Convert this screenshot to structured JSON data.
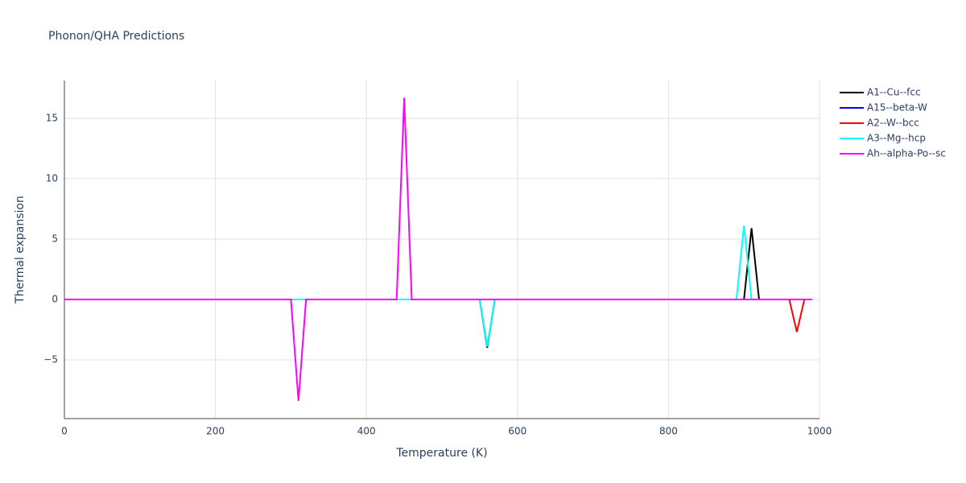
{
  "chart_data": {
    "type": "line",
    "title": "Phonon/QHA Predictions",
    "xlabel": "Temperature (K)",
    "ylabel": "Thermal expansion",
    "xlim": [
      0,
      1000
    ],
    "xticks": [
      0,
      200,
      400,
      600,
      800,
      1000
    ],
    "ylim": [
      -9.87,
      18.13
    ],
    "yticks": [
      {
        "value": -5,
        "label": "−5"
      },
      0,
      5,
      10,
      15
    ],
    "grid": true,
    "legend": "right",
    "x": [
      0,
      10,
      20,
      30,
      40,
      50,
      60,
      70,
      80,
      90,
      100,
      110,
      120,
      130,
      140,
      150,
      160,
      170,
      180,
      190,
      200,
      210,
      220,
      230,
      240,
      250,
      260,
      270,
      280,
      290,
      300,
      310,
      320,
      330,
      340,
      350,
      360,
      370,
      380,
      390,
      400,
      410,
      420,
      430,
      440,
      450,
      460,
      470,
      480,
      490,
      500,
      510,
      520,
      530,
      540,
      550,
      560,
      570,
      580,
      590,
      600,
      610,
      620,
      630,
      640,
      650,
      660,
      670,
      680,
      690,
      700,
      710,
      720,
      730,
      740,
      750,
      760,
      770,
      780,
      790,
      800,
      810,
      820,
      830,
      840,
      850,
      860,
      870,
      880,
      890,
      900,
      910,
      920,
      930,
      940,
      950,
      960,
      970,
      980,
      990
    ],
    "series": [
      {
        "name": "A1--Cu--fcc",
        "color": "#000000",
        "values": [
          0,
          0,
          0,
          0,
          0,
          0,
          0,
          0,
          0,
          0,
          0,
          0,
          0,
          0,
          0,
          0,
          0,
          0,
          0,
          0,
          0,
          0,
          0,
          0,
          0,
          0,
          0,
          0,
          0,
          0,
          0,
          0,
          0,
          0,
          0,
          0,
          0,
          0,
          0,
          0,
          0,
          0,
          0,
          0,
          0,
          0,
          0,
          0,
          0,
          0,
          0,
          0,
          0,
          0,
          0,
          0,
          -4.0,
          0,
          0,
          0,
          0,
          0,
          0,
          0,
          0,
          0,
          0,
          0,
          0,
          0,
          0,
          0,
          0,
          0,
          0,
          0,
          0,
          0,
          0,
          0,
          0,
          0,
          0,
          0,
          0,
          0,
          0,
          0,
          0,
          0,
          0,
          5.9,
          0,
          0,
          0,
          0,
          0,
          0,
          0,
          0
        ]
      },
      {
        "name": "A15--beta-W",
        "color": "#0000ff",
        "values": [
          0,
          0,
          0,
          0,
          0,
          0,
          0,
          0,
          0,
          0,
          0,
          0,
          0,
          0,
          0,
          0,
          0,
          0,
          0,
          0,
          0,
          0,
          0,
          0,
          0,
          0,
          0,
          0,
          0,
          0,
          0,
          0,
          0,
          0,
          0,
          0,
          0,
          0,
          0,
          0,
          0,
          0,
          0,
          0,
          0,
          0,
          0,
          0,
          0,
          0,
          0,
          0,
          0,
          0,
          0,
          0,
          0,
          0,
          0,
          0,
          0,
          0,
          0,
          0,
          0,
          0,
          0,
          0,
          0,
          0,
          0,
          0,
          0,
          0,
          0,
          0,
          0,
          0,
          0,
          0,
          0,
          0,
          0,
          0,
          0,
          0,
          0,
          0,
          0,
          0,
          0,
          0,
          0,
          0,
          0,
          0,
          0,
          0,
          0,
          0
        ]
      },
      {
        "name": "A2--W--bcc",
        "color": "#ff0000",
        "values": [
          0,
          0,
          0,
          0,
          0,
          0,
          0,
          0,
          0,
          0,
          0,
          0,
          0,
          0,
          0,
          0,
          0,
          0,
          0,
          0,
          0,
          0,
          0,
          0,
          0,
          0,
          0,
          0,
          0,
          0,
          0,
          0,
          0,
          0,
          0,
          0,
          0,
          0,
          0,
          0,
          0,
          0,
          0,
          0,
          0,
          0,
          0,
          0,
          0,
          0,
          0,
          0,
          0,
          0,
          0,
          0,
          0,
          0,
          0,
          0,
          0,
          0,
          0,
          0,
          0,
          0,
          0,
          0,
          0,
          0,
          0,
          0,
          0,
          0,
          0,
          0,
          0,
          0,
          0,
          0,
          0,
          0,
          0,
          0,
          0,
          0,
          0,
          0,
          0,
          0,
          0,
          0,
          0,
          0,
          0,
          0,
          0,
          -2.7,
          0,
          0
        ]
      },
      {
        "name": "A3--Mg--hcp",
        "color": "#00ffff",
        "values": [
          0,
          0,
          0,
          0,
          0,
          0,
          0,
          0,
          0,
          0,
          0,
          0,
          0,
          0,
          0,
          0,
          0,
          0,
          0,
          0,
          0,
          0,
          0,
          0,
          0,
          0,
          0,
          0,
          0,
          0,
          0,
          0,
          0,
          0,
          0,
          0,
          0,
          0,
          0,
          0,
          0,
          0,
          0,
          0,
          0,
          0,
          0,
          0,
          0,
          0,
          0,
          0,
          0,
          0,
          0,
          0,
          -3.9,
          0,
          0,
          0,
          0,
          0,
          0,
          0,
          0,
          0,
          0,
          0,
          0,
          0,
          0,
          0,
          0,
          0,
          0,
          0,
          0,
          0,
          0,
          0,
          0,
          0,
          0,
          0,
          0,
          0,
          0,
          0,
          0,
          0,
          6.1,
          0,
          0,
          0,
          0,
          0,
          0,
          0,
          0,
          0
        ]
      },
      {
        "name": "Ah--alpha-Po--sc",
        "color": "#ff00ff",
        "values": [
          0,
          0,
          0,
          0,
          0,
          0,
          0,
          0,
          0,
          0,
          0,
          0,
          0,
          0,
          0,
          0,
          0,
          0,
          0,
          0,
          0,
          0,
          0,
          0,
          0,
          0,
          0,
          0,
          0,
          0,
          0,
          -8.4,
          0,
          0,
          0,
          0,
          0,
          0,
          0,
          0,
          0,
          0,
          0,
          0,
          0,
          16.7,
          0,
          0,
          0,
          0,
          0,
          0,
          0,
          0,
          0,
          0,
          0,
          0,
          0,
          0,
          0,
          0,
          0,
          0,
          0,
          0,
          0,
          0,
          0,
          0,
          0,
          0,
          0,
          0,
          0,
          0,
          0,
          0,
          0,
          0,
          0,
          0,
          0,
          0,
          0,
          0,
          0,
          0,
          0,
          0,
          0,
          0,
          0,
          0,
          0,
          0,
          0,
          0,
          0,
          0
        ]
      }
    ]
  }
}
